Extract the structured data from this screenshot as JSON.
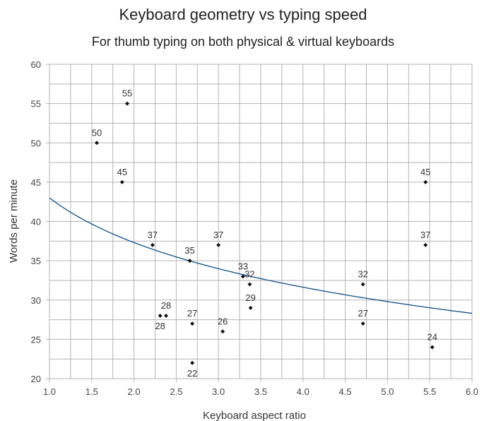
{
  "chart_data": {
    "type": "scatter",
    "title": "Keyboard geometry vs typing speed",
    "subtitle": "For thumb typing on both physical & virtual keyboards",
    "xlabel": "Keyboard aspect ratio",
    "ylabel": "Words per minute",
    "xlim": [
      1.0,
      6.0
    ],
    "ylim": [
      20,
      60
    ],
    "xticks": [
      "1.0",
      "1.5",
      "2.0",
      "2.5",
      "3.0",
      "3.5",
      "4.0",
      "4.5",
      "5.0",
      "5.5",
      "6.0"
    ],
    "yticks": [
      "20",
      "25",
      "30",
      "35",
      "40",
      "45",
      "50",
      "55",
      "60"
    ],
    "grid": true,
    "points": [
      {
        "x": 1.56,
        "y": 50,
        "label": "50",
        "pos": "above"
      },
      {
        "x": 1.92,
        "y": 55,
        "label": "55",
        "pos": "above"
      },
      {
        "x": 1.86,
        "y": 45,
        "label": "45",
        "pos": "above"
      },
      {
        "x": 2.22,
        "y": 37,
        "label": "37",
        "pos": "above"
      },
      {
        "x": 2.31,
        "y": 28,
        "label": "28",
        "pos": "below"
      },
      {
        "x": 2.38,
        "y": 28,
        "label": "28",
        "pos": "above"
      },
      {
        "x": 2.66,
        "y": 35,
        "label": "35",
        "pos": "above"
      },
      {
        "x": 2.69,
        "y": 27,
        "label": "27",
        "pos": "above"
      },
      {
        "x": 2.69,
        "y": 22,
        "label": "22",
        "pos": "below"
      },
      {
        "x": 3.0,
        "y": 37,
        "label": "37",
        "pos": "above"
      },
      {
        "x": 3.05,
        "y": 26,
        "label": "26",
        "pos": "above"
      },
      {
        "x": 3.29,
        "y": 33,
        "label": "33",
        "pos": "above"
      },
      {
        "x": 3.37,
        "y": 32,
        "label": "32",
        "pos": "above"
      },
      {
        "x": 3.38,
        "y": 29,
        "label": "29",
        "pos": "above"
      },
      {
        "x": 4.71,
        "y": 32,
        "label": "32",
        "pos": "above"
      },
      {
        "x": 4.71,
        "y": 27,
        "label": "27",
        "pos": "above"
      },
      {
        "x": 5.45,
        "y": 45,
        "label": "45",
        "pos": "above"
      },
      {
        "x": 5.45,
        "y": 37,
        "label": "37",
        "pos": "above"
      },
      {
        "x": 5.53,
        "y": 24,
        "label": "24",
        "pos": "above"
      }
    ],
    "trendline": {
      "type": "logarithmic",
      "a": 43.0,
      "b": -8.2
    },
    "colors": {
      "points": "#111111",
      "trendline": "#0d4f8b",
      "grid": "#b3b3b3"
    }
  }
}
